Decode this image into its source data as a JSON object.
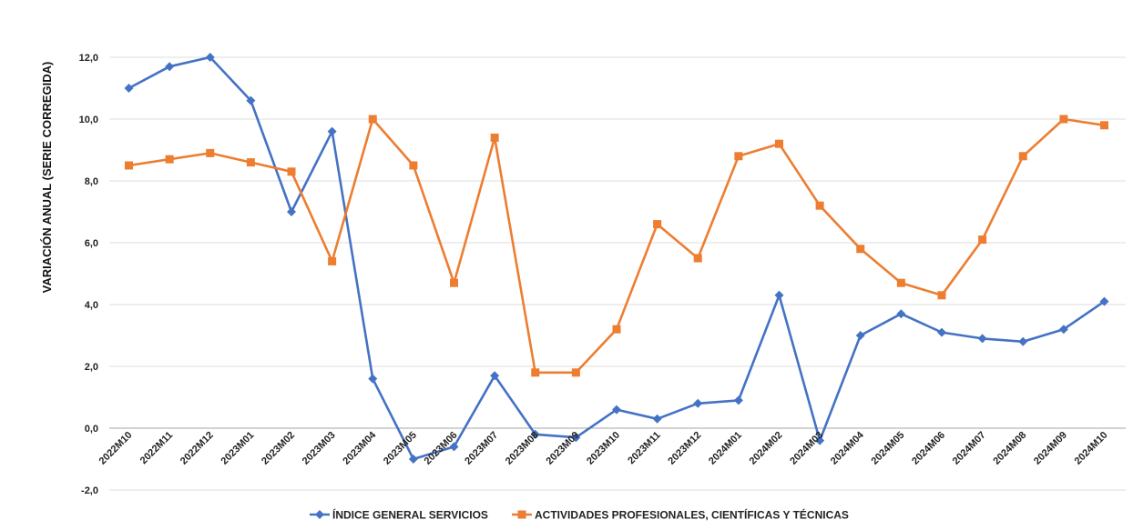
{
  "chart_data": {
    "type": "line",
    "title": "",
    "xlabel": "",
    "ylabel": "VARIACIÓN ANUAL (SERIE CORREGIDA)",
    "ylim": [
      -2,
      12
    ],
    "ytick_step": 2,
    "ytick_labels": [
      "-2,0",
      "0,0",
      "2,0",
      "4,0",
      "6,0",
      "8,0",
      "10,0",
      "12,0"
    ],
    "grid": true,
    "legend_position": "bottom",
    "categories": [
      "2022M10",
      "2022M11",
      "2022M12",
      "2023M01",
      "2023M02",
      "2023M03",
      "2023M04",
      "2023M05",
      "2023M06",
      "2023M07",
      "2023M08",
      "2023M09",
      "2023M10",
      "2023M11",
      "2023M12",
      "2024M01",
      "2024M02",
      "2024M03",
      "2024M04",
      "2024M05",
      "2024M06",
      "2024M07",
      "2024M08",
      "2024M09",
      "2024M10"
    ],
    "series": [
      {
        "name": "ÍNDICE GENERAL SERVICIOS",
        "color": "#4472C4",
        "marker": "diamond",
        "values": [
          11.0,
          11.7,
          12.0,
          10.6,
          7.0,
          9.6,
          1.6,
          -1.0,
          -0.6,
          1.7,
          -0.2,
          -0.3,
          0.6,
          0.3,
          0.8,
          0.9,
          4.3,
          -0.4,
          3.0,
          3.7,
          3.1,
          2.9,
          2.8,
          3.2,
          4.1
        ]
      },
      {
        "name": "ACTIVIDADES PROFESIONALES, CIENTÍFICAS Y TÉCNICAS",
        "color": "#ED7D31",
        "marker": "square",
        "values": [
          8.5,
          8.7,
          8.9,
          8.6,
          8.3,
          5.4,
          10.0,
          8.5,
          4.7,
          9.4,
          1.8,
          1.8,
          3.2,
          6.6,
          5.5,
          8.8,
          9.2,
          7.2,
          5.8,
          4.7,
          4.3,
          6.1,
          8.8,
          10.0,
          9.8
        ]
      }
    ]
  }
}
